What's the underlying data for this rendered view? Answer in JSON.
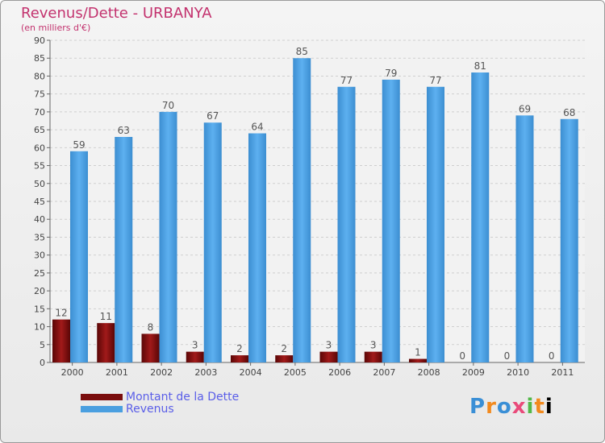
{
  "header": {
    "title": "Revenus/Dette - URBANYA",
    "subtitle": "(en milliers d'€)"
  },
  "legend": {
    "debt_label": "Montant de la Dette",
    "revenue_label": "Revenus"
  },
  "logo": {
    "text": "Proxiti"
  },
  "colors": {
    "debt": "#7a0d0d",
    "revenue": "#4a9fe0",
    "title": "#c3326e",
    "legend_text": "#5a5ee8"
  },
  "chart_data": {
    "type": "bar",
    "title": "Revenus/Dette - URBANYA",
    "subtitle": "(en milliers d'€)",
    "categories": [
      "2000",
      "2001",
      "2002",
      "2003",
      "2004",
      "2005",
      "2006",
      "2007",
      "2008",
      "2009",
      "2010",
      "2011"
    ],
    "series": [
      {
        "name": "Montant de la Dette",
        "values": [
          12,
          11,
          8,
          3,
          2,
          2,
          3,
          3,
          1,
          0,
          0,
          0
        ]
      },
      {
        "name": "Revenus",
        "values": [
          59,
          63,
          70,
          67,
          64,
          85,
          77,
          79,
          77,
          81,
          69,
          68
        ]
      }
    ],
    "ylim": [
      0,
      90
    ],
    "yticks": [
      0,
      5,
      10,
      15,
      20,
      25,
      30,
      35,
      40,
      45,
      50,
      55,
      60,
      65,
      70,
      75,
      80,
      85,
      90
    ],
    "grid": true,
    "legend_position": "bottom-left"
  }
}
